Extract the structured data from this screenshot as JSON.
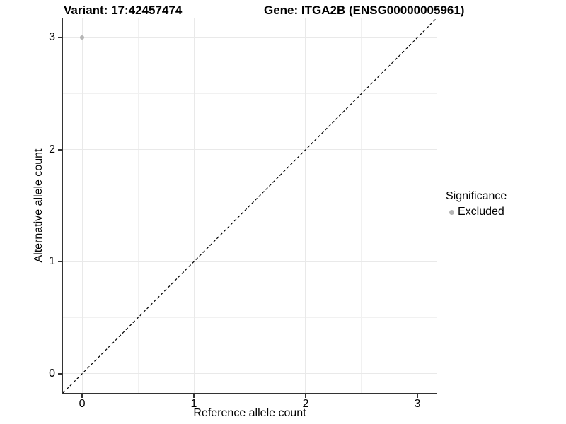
{
  "chart_data": {
    "type": "scatter",
    "title_left": "Variant: 17:42457474",
    "title_right": "Gene: ITGA2B (ENSG00000005961)",
    "xlabel": "Reference allele count",
    "ylabel": "Alternative allele count",
    "xlim": [
      -0.171,
      3.171
    ],
    "ylim": [
      -0.171,
      3.171
    ],
    "x_ticks": [
      0,
      1,
      2,
      3
    ],
    "y_ticks": [
      0,
      1,
      2,
      3
    ],
    "x_minor_ticks": [
      0.5,
      1.5,
      2.5
    ],
    "y_minor_ticks": [
      0.5,
      1.5,
      2.5
    ],
    "grid": true,
    "points": [
      {
        "x": 0,
        "y": 3,
        "series": "Excluded"
      }
    ],
    "point_color": "#b5b5b5",
    "reference_line": {
      "type": "identity",
      "style": "dashed",
      "color": "#000000"
    },
    "legend": {
      "title": "Significance",
      "position": "right",
      "entries": [
        {
          "label": "Excluded",
          "color": "#b5b5b5"
        }
      ]
    },
    "colors": {
      "axis_line": "#333333",
      "grid_major": "#e9e9e9",
      "grid_minor": "#f1f1f1",
      "title_text": "#000000"
    }
  }
}
